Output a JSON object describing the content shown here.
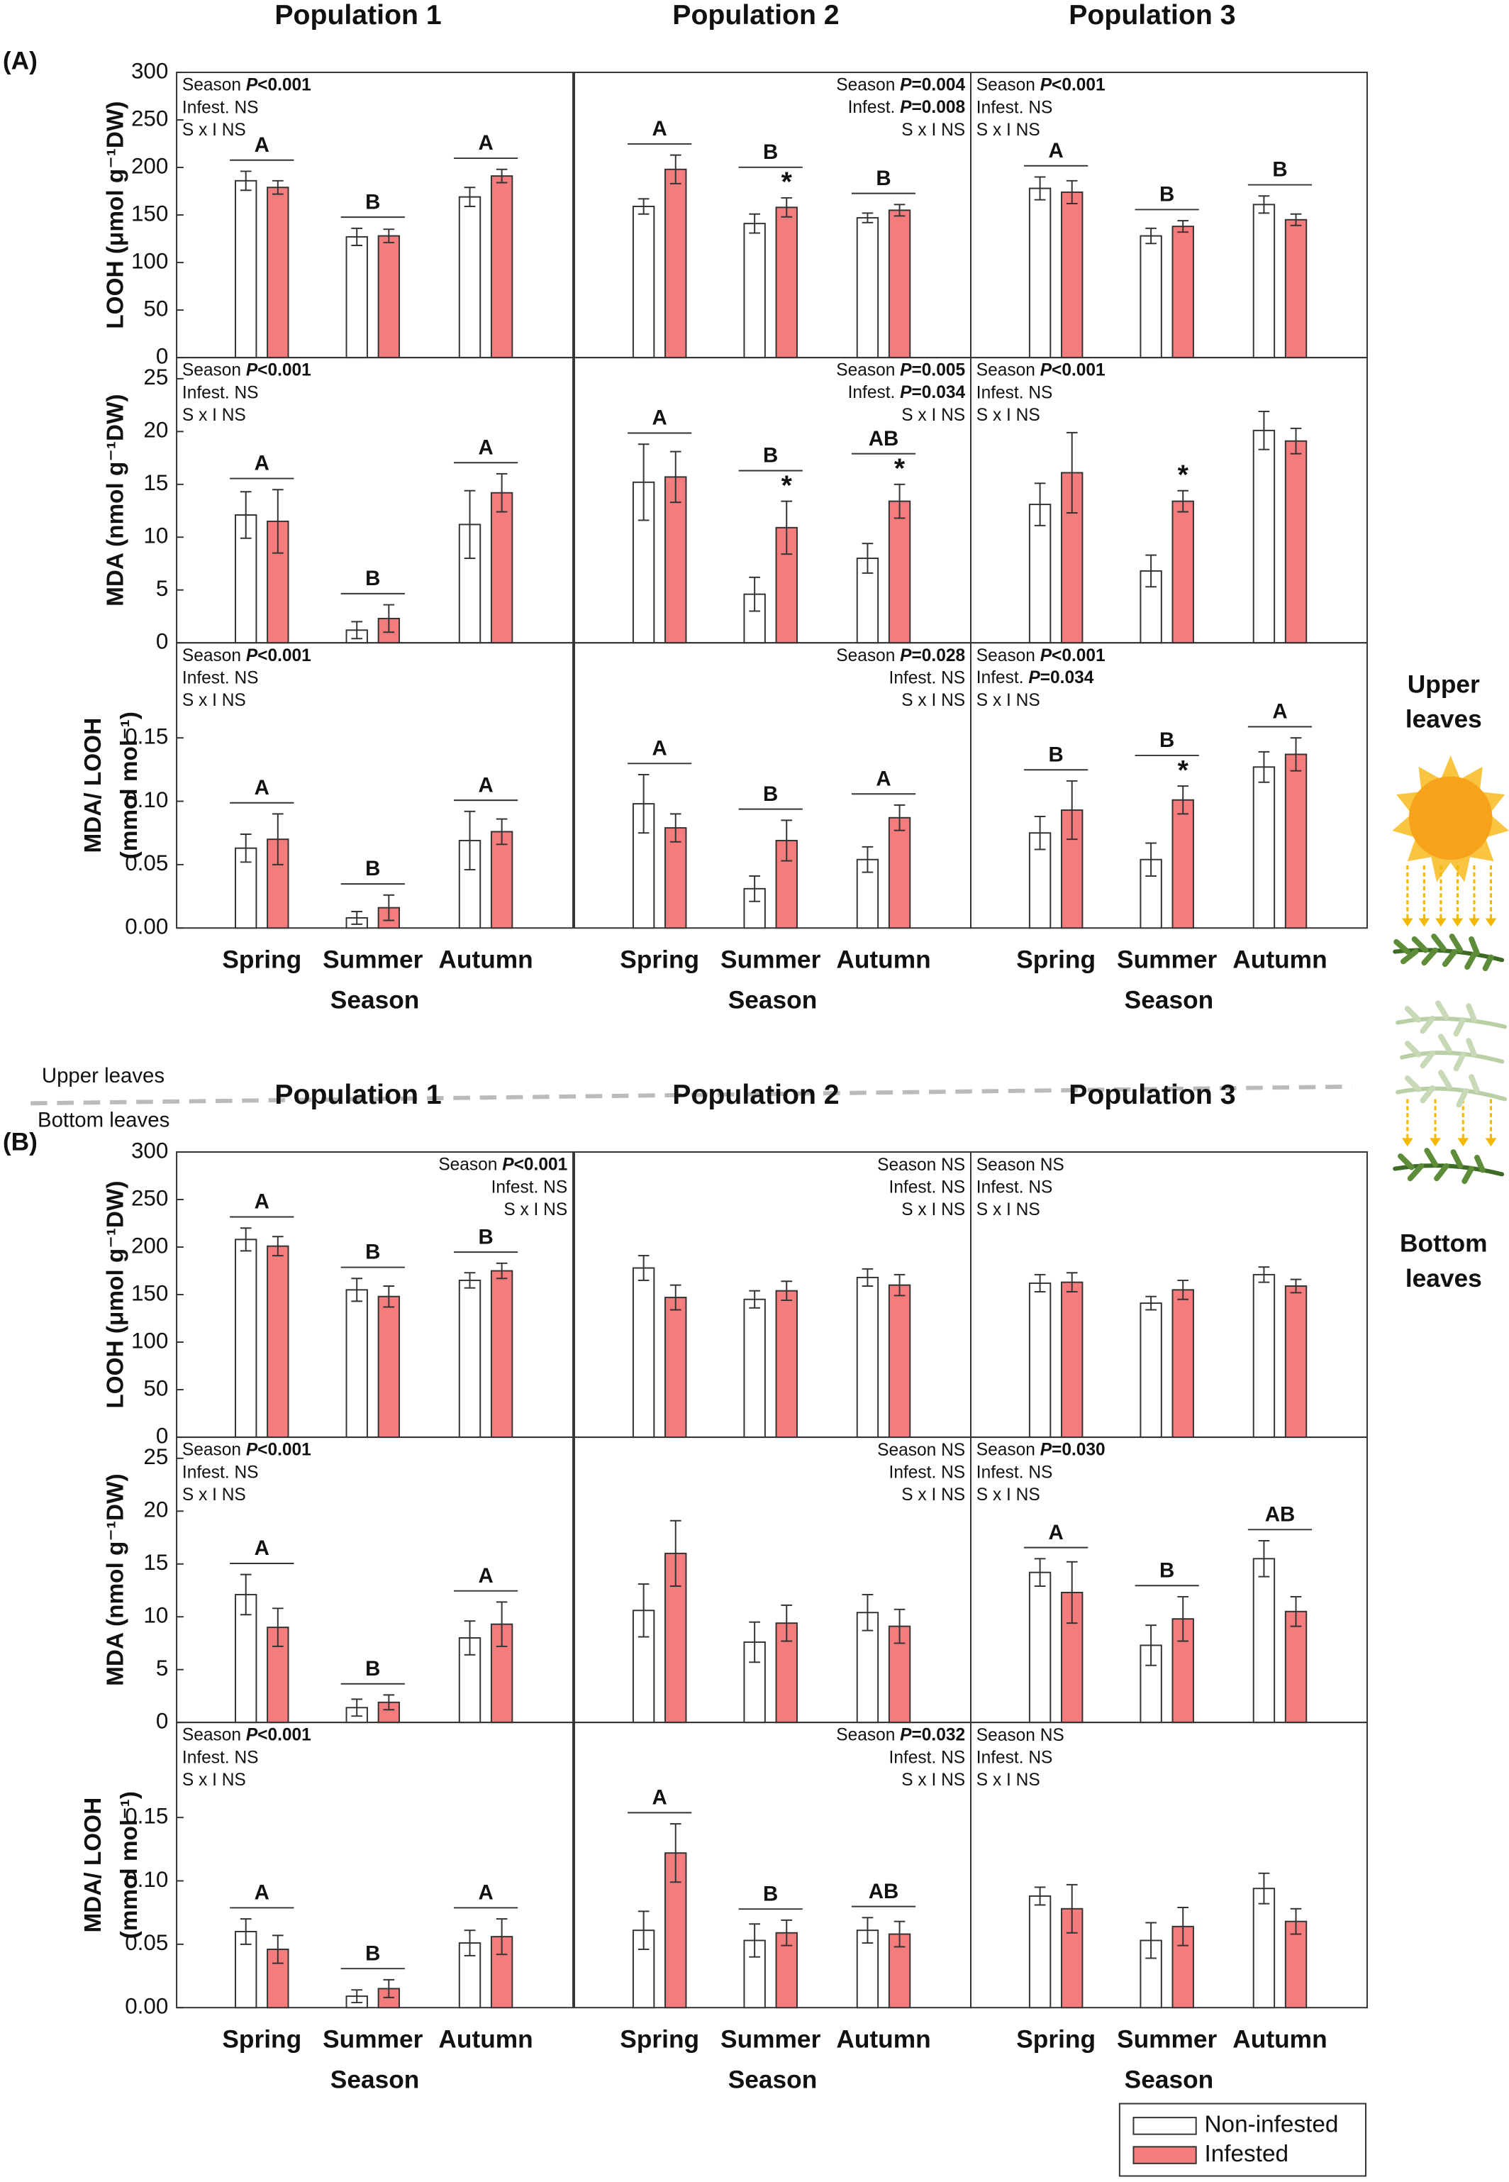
{
  "panel_labels": [
    "(A)",
    "(B)"
  ],
  "divider": {
    "upper": "Upper leaves",
    "bottom": "Bottom leaves"
  },
  "side_labels": [
    [
      "Upper",
      "leaves"
    ],
    [
      "Bottom",
      "leaves"
    ]
  ],
  "chart_data": [
    {
      "type": "bar",
      "title": "Population 1",
      "ylabel": "LOOH (μmol g⁻¹DW)",
      "ylim": [
        0,
        300
      ],
      "yticks": [
        0,
        50,
        100,
        150,
        200,
        250,
        300
      ],
      "series": [
        {
          "color": "#ffffff",
          "values": [
            186,
            127,
            169
          ],
          "errors": [
            10,
            9,
            10
          ]
        },
        {
          "color": "#f47c7c",
          "values": [
            179,
            128,
            191
          ],
          "errors": [
            7,
            7,
            7
          ]
        }
      ],
      "letters": [
        "A",
        "B",
        "A"
      ],
      "stats": [
        "Season P<0.001",
        "Infest. NS",
        "S x I NS"
      ]
    },
    {
      "type": "bar",
      "title": "Population 2",
      "ylim": [
        0,
        300
      ],
      "series": [
        {
          "color": "#ffffff",
          "values": [
            159,
            141,
            147
          ],
          "errors": [
            8,
            10,
            5
          ]
        },
        {
          "color": "#f47c7c",
          "values": [
            198,
            158,
            155
          ],
          "errors": [
            15,
            10,
            6
          ]
        }
      ],
      "letters": [
        "A",
        "B",
        "B"
      ],
      "stars": [
        null,
        "*",
        null
      ],
      "stats": [
        "Season P=0.004",
        "Infest. P=0.008",
        "S x I NS"
      ]
    },
    {
      "type": "bar",
      "title": "Population 3",
      "ylim": [
        0,
        300
      ],
      "series": [
        {
          "color": "#ffffff",
          "values": [
            178,
            128,
            161
          ],
          "errors": [
            12,
            8,
            9
          ]
        },
        {
          "color": "#f47c7c",
          "values": [
            174,
            138,
            145
          ],
          "errors": [
            12,
            6,
            6
          ]
        }
      ],
      "letters": [
        "A",
        "B",
        "B"
      ],
      "stats": [
        "Season P<0.001",
        "Infest. NS",
        "S x I NS"
      ]
    },
    {
      "type": "bar",
      "ylabel": "MDA (nmol g⁻¹DW)",
      "ylim": [
        0,
        27
      ],
      "yticks": [
        0,
        5,
        10,
        15,
        20,
        25
      ],
      "series": [
        {
          "color": "#ffffff",
          "values": [
            12.1,
            1.2,
            11.2
          ],
          "errors": [
            2.2,
            0.8,
            3.2
          ]
        },
        {
          "color": "#f47c7c",
          "values": [
            11.5,
            2.3,
            14.2
          ],
          "errors": [
            3,
            1.3,
            1.8
          ]
        }
      ],
      "letters": [
        "A",
        "B",
        "A"
      ],
      "stats": [
        "Season P<0.001",
        "Infest. NS",
        "S x I NS"
      ]
    },
    {
      "type": "bar",
      "ylim": [
        0,
        27
      ],
      "series": [
        {
          "color": "#ffffff",
          "values": [
            15.2,
            4.6,
            8.0
          ],
          "errors": [
            3.6,
            1.6,
            1.4
          ]
        },
        {
          "color": "#f47c7c",
          "values": [
            15.7,
            10.9,
            13.4
          ],
          "errors": [
            2.4,
            2.5,
            1.6
          ]
        }
      ],
      "letters": [
        "A",
        "B",
        "AB"
      ],
      "stars": [
        null,
        "*",
        "*"
      ],
      "stats": [
        "Season P=0.005",
        "Infest. P=0.034",
        "S x I NS"
      ]
    },
    {
      "type": "bar",
      "ylim": [
        0,
        27
      ],
      "series": [
        {
          "color": "#ffffff",
          "values": [
            13.1,
            6.8,
            20.1
          ],
          "errors": [
            2,
            1.5,
            1.8
          ]
        },
        {
          "color": "#f47c7c",
          "values": [
            16.1,
            13.4,
            19.1
          ],
          "errors": [
            3.8,
            1,
            1.2
          ]
        }
      ],
      "stars": [
        null,
        "*",
        null
      ],
      "stats": [
        "Season P<0.001",
        "Infest. NS",
        "S x I NS"
      ]
    },
    {
      "type": "bar",
      "ylabel": [
        "MDA/ LOOH",
        "(mmol mol⁻¹)"
      ],
      "xlabel": "Season",
      "categories": [
        "Spring",
        "Summer",
        "Autumn"
      ],
      "ylim": [
        0,
        0.225
      ],
      "yticks": [
        {
          "value": 0,
          "label": "0.00"
        },
        {
          "value": 0.05,
          "label": "0.05"
        },
        {
          "value": 0.1,
          "label": "0.10"
        },
        {
          "value": 0.15,
          "label": "0.15"
        }
      ],
      "series": [
        {
          "color": "#ffffff",
          "values": [
            0.063,
            0.008,
            0.069
          ],
          "errors": [
            0.011,
            0.005,
            0.023
          ]
        },
        {
          "color": "#f47c7c",
          "values": [
            0.07,
            0.016,
            0.076
          ],
          "errors": [
            0.02,
            0.01,
            0.01
          ]
        }
      ],
      "letters": [
        "A",
        "B",
        "A"
      ],
      "stats": [
        "Season P<0.001",
        "Infest. NS",
        "S x I NS"
      ]
    },
    {
      "type": "bar",
      "xlabel": "Season",
      "categories": [
        "Spring",
        "Summer",
        "Autumn"
      ],
      "ylim": [
        0,
        0.225
      ],
      "series": [
        {
          "color": "#ffffff",
          "values": [
            0.098,
            0.031,
            0.054
          ],
          "errors": [
            0.023,
            0.01,
            0.01
          ]
        },
        {
          "color": "#f47c7c",
          "values": [
            0.079,
            0.069,
            0.087
          ],
          "errors": [
            0.011,
            0.016,
            0.01
          ]
        }
      ],
      "letters": [
        "A",
        "B",
        "A"
      ],
      "stats": [
        "Season P=0.028",
        "Infest. NS",
        "S x I NS"
      ]
    },
    {
      "type": "bar",
      "xlabel": "Season",
      "categories": [
        "Spring",
        "Summer",
        "Autumn"
      ],
      "ylim": [
        0,
        0.225
      ],
      "series": [
        {
          "color": "#ffffff",
          "values": [
            0.075,
            0.054,
            0.127
          ],
          "errors": [
            0.013,
            0.013,
            0.012
          ]
        },
        {
          "color": "#f47c7c",
          "values": [
            0.093,
            0.101,
            0.137
          ],
          "errors": [
            0.023,
            0.011,
            0.013
          ]
        }
      ],
      "letters": [
        "B",
        "B",
        "A"
      ],
      "stars": [
        null,
        "*",
        null
      ],
      "stats": [
        "Season P<0.001",
        "Infest. P=0.034",
        "S x I NS"
      ]
    },
    {
      "type": "bar",
      "title": "Population 1",
      "ylabel": "LOOH (μmol g⁻¹DW)",
      "ylim": [
        0,
        300
      ],
      "yticks": [
        0,
        50,
        100,
        150,
        200,
        250,
        300
      ],
      "series": [
        {
          "color": "#ffffff",
          "values": [
            208,
            155,
            165
          ],
          "errors": [
            12,
            12,
            8
          ]
        },
        {
          "color": "#f47c7c",
          "values": [
            201,
            148,
            175
          ],
          "errors": [
            10,
            11,
            8
          ]
        }
      ],
      "letters": [
        "A",
        "B",
        "B"
      ],
      "stats": [
        "Season P<0.001",
        "Infest. NS",
        "S x I NS"
      ]
    },
    {
      "type": "bar",
      "title": "Population 2",
      "ylim": [
        0,
        300
      ],
      "series": [
        {
          "color": "#ffffff",
          "values": [
            178,
            145,
            168
          ],
          "errors": [
            13,
            9,
            9
          ]
        },
        {
          "color": "#f47c7c",
          "values": [
            147,
            154,
            160
          ],
          "errors": [
            13,
            10,
            11
          ]
        }
      ],
      "stats": [
        "Season NS",
        "Infest. NS",
        "S x I NS"
      ]
    },
    {
      "type": "bar",
      "title": "Population 3",
      "ylim": [
        0,
        300
      ],
      "series": [
        {
          "color": "#ffffff",
          "values": [
            162,
            141,
            171
          ],
          "errors": [
            9,
            7,
            8
          ]
        },
        {
          "color": "#f47c7c",
          "values": [
            163,
            155,
            159
          ],
          "errors": [
            10,
            10,
            7
          ]
        }
      ],
      "stats": [
        "Season NS",
        "Infest. NS",
        "S x I NS"
      ]
    },
    {
      "type": "bar",
      "ylabel": "MDA (nmol g⁻¹DW)",
      "ylim": [
        0,
        27
      ],
      "yticks": [
        0,
        5,
        10,
        15,
        20,
        25
      ],
      "series": [
        {
          "color": "#ffffff",
          "values": [
            12.1,
            1.4,
            8.0
          ],
          "errors": [
            1.9,
            0.8,
            1.6
          ]
        },
        {
          "color": "#f47c7c",
          "values": [
            9.0,
            1.9,
            9.3
          ],
          "errors": [
            1.8,
            0.7,
            2.1
          ]
        }
      ],
      "letters": [
        "A",
        "B",
        "A"
      ],
      "stats": [
        "Season P<0.001",
        "Infest. NS",
        "S x I NS"
      ]
    },
    {
      "type": "bar",
      "ylim": [
        0,
        27
      ],
      "series": [
        {
          "color": "#ffffff",
          "values": [
            10.6,
            7.6,
            10.4
          ],
          "errors": [
            2.5,
            1.9,
            1.7
          ]
        },
        {
          "color": "#f47c7c",
          "values": [
            16.0,
            9.4,
            9.1
          ],
          "errors": [
            3.1,
            1.7,
            1.6
          ]
        }
      ],
      "stats": [
        "Season NS",
        "Infest. NS",
        "S x I NS"
      ]
    },
    {
      "type": "bar",
      "ylim": [
        0,
        27
      ],
      "series": [
        {
          "color": "#ffffff",
          "values": [
            14.2,
            7.3,
            15.5
          ],
          "errors": [
            1.3,
            1.9,
            1.7
          ]
        },
        {
          "color": "#f47c7c",
          "values": [
            12.3,
            9.8,
            10.5
          ],
          "errors": [
            2.9,
            2.1,
            1.4
          ]
        }
      ],
      "letters": [
        "A",
        "B",
        "AB"
      ],
      "stats": [
        "Season P=0.030",
        "Infest. NS",
        "S x I NS"
      ]
    },
    {
      "type": "bar",
      "ylabel": [
        "MDA/ LOOH",
        "(mmol mol⁻¹)"
      ],
      "xlabel": "Season",
      "categories": [
        "Spring",
        "Summer",
        "Autumn"
      ],
      "ylim": [
        0,
        0.225
      ],
      "yticks": [
        {
          "value": 0,
          "label": "0.00"
        },
        {
          "value": 0.05,
          "label": "0.05"
        },
        {
          "value": 0.1,
          "label": "0.10"
        },
        {
          "value": 0.15,
          "label": "0.15"
        }
      ],
      "series": [
        {
          "color": "#ffffff",
          "values": [
            0.06,
            0.009,
            0.051
          ],
          "errors": [
            0.01,
            0.005,
            0.01
          ]
        },
        {
          "color": "#f47c7c",
          "values": [
            0.046,
            0.015,
            0.056
          ],
          "errors": [
            0.011,
            0.007,
            0.014
          ]
        }
      ],
      "letters": [
        "A",
        "B",
        "A"
      ],
      "stats": [
        "Season P<0.001",
        "Infest. NS",
        "S x I NS"
      ]
    },
    {
      "type": "bar",
      "xlabel": "Season",
      "categories": [
        "Spring",
        "Summer",
        "Autumn"
      ],
      "ylim": [
        0,
        0.225
      ],
      "series": [
        {
          "color": "#ffffff",
          "values": [
            0.061,
            0.053,
            0.061
          ],
          "errors": [
            0.015,
            0.013,
            0.01
          ]
        },
        {
          "color": "#f47c7c",
          "values": [
            0.122,
            0.059,
            0.058
          ],
          "errors": [
            0.023,
            0.01,
            0.01
          ]
        }
      ],
      "letters": [
        "A",
        "B",
        "AB"
      ],
      "stats": [
        "Season P=0.032",
        "Infest. NS",
        "S x I NS"
      ]
    },
    {
      "type": "bar",
      "xlabel": "Season",
      "categories": [
        "Spring",
        "Summer",
        "Autumn"
      ],
      "ylim": [
        0,
        0.225
      ],
      "series": [
        {
          "name": "Non-infested",
          "color": "#ffffff",
          "values": [
            0.088,
            0.053,
            0.094
          ],
          "errors": [
            0.007,
            0.014,
            0.012
          ]
        },
        {
          "name": "Infested",
          "color": "#f47c7c",
          "values": [
            0.078,
            0.064,
            0.068
          ],
          "errors": [
            0.019,
            0.015,
            0.01
          ]
        }
      ],
      "stats": [
        "Season NS",
        "Infest. NS",
        "S x I NS"
      ]
    }
  ]
}
